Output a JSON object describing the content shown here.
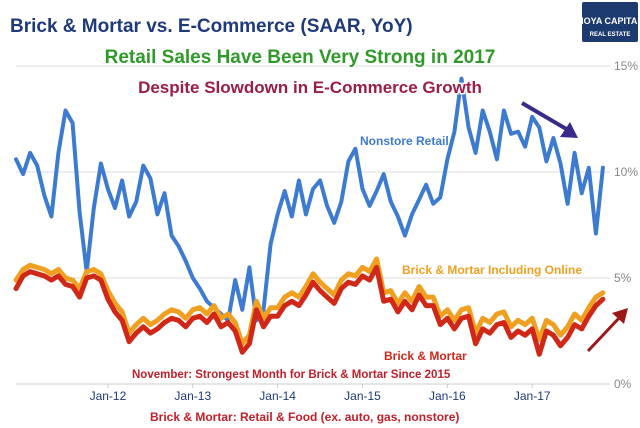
{
  "chart_data": {
    "type": "line",
    "title": "Brick & Mortar vs. E-Commerce (SAAR, YoY)",
    "headline": "Retail Sales Have Been Very Strong in 2017",
    "subheadline": "Despite Slowdown in E-Commerce Growth",
    "logo": {
      "line1": "HOYA CAPITAL",
      "line2": "REAL ESTATE"
    },
    "x_tick_labels": [
      {
        "label": "Jan-12",
        "x": 13
      },
      {
        "label": "Jan-13",
        "x": 25
      },
      {
        "label": "Jan-14",
        "x": 37
      },
      {
        "label": "Jan-15",
        "x": 49
      },
      {
        "label": "Jan-16",
        "x": 61
      },
      {
        "label": "Jan-17",
        "x": 73
      }
    ],
    "ylim": [
      0,
      15
    ],
    "xlim": [
      0,
      84
    ],
    "y_ticks": [
      0,
      5,
      10,
      15
    ],
    "y_tick_labels": [
      "0%",
      "5%",
      "10%",
      "15%"
    ],
    "grid": "horizontal",
    "series": [
      {
        "name": "Nonstore Retail",
        "color": "#3d7bd0",
        "values": [
          10.6,
          9.9,
          10.9,
          10.3,
          8.9,
          7.9,
          10.9,
          12.9,
          12.3,
          8.1,
          5.3,
          8.3,
          10.4,
          9.2,
          8.3,
          9.6,
          7.9,
          8.6,
          10.3,
          9.7,
          8.0,
          9.0,
          7.0,
          6.5,
          5.8,
          5.0,
          4.5,
          3.9,
          3.6,
          3.3,
          3.0,
          4.9,
          3.5,
          5.5,
          3.0,
          3.5,
          6.6,
          8.0,
          9.1,
          7.9,
          9.6,
          8.0,
          9.2,
          9.6,
          8.4,
          7.6,
          8.6,
          10.5,
          11.1,
          9.2,
          8.4,
          9.1,
          9.9,
          8.6,
          7.9,
          7.0,
          8.0,
          8.7,
          9.4,
          8.5,
          8.8,
          10.6,
          11.9,
          14.4,
          12.1,
          10.9,
          12.9,
          11.9,
          10.6,
          12.9,
          11.8,
          11.9,
          11.2,
          12.6,
          12.1,
          10.5,
          11.6,
          10.4,
          8.5,
          10.9,
          9.0,
          10.2,
          7.1,
          10.2
        ],
        "label": "Nonstore Retail"
      },
      {
        "name": "Brick & Mortar Including Online",
        "color": "#f0a020",
        "values": [
          4.9,
          5.4,
          5.6,
          5.5,
          5.4,
          5.2,
          5.4,
          5.0,
          4.9,
          4.5,
          5.3,
          5.4,
          5.2,
          4.4,
          3.8,
          3.4,
          2.4,
          2.8,
          3.1,
          2.8,
          3.0,
          3.3,
          3.5,
          3.4,
          3.1,
          3.5,
          3.6,
          3.3,
          3.7,
          3.1,
          3.3,
          2.9,
          1.9,
          2.3,
          3.9,
          3.1,
          3.6,
          3.6,
          4.1,
          4.3,
          4.1,
          4.6,
          5.2,
          4.8,
          4.5,
          4.2,
          4.9,
          5.2,
          5.1,
          5.5,
          5.3,
          5.9,
          4.3,
          4.4,
          3.8,
          4.3,
          3.9,
          4.6,
          4.1,
          4.1,
          3.2,
          3.5,
          3.0,
          3.5,
          3.6,
          2.4,
          3.1,
          2.9,
          3.3,
          3.4,
          2.7,
          3.0,
          2.8,
          3.1,
          2.1,
          3.0,
          2.8,
          2.3,
          2.7,
          3.3,
          3.0,
          3.6,
          4.1,
          4.3
        ],
        "label": "Brick & Mortar Including Online"
      },
      {
        "name": "Brick & Mortar",
        "color": "#d02818",
        "values": [
          4.5,
          5.1,
          5.3,
          5.2,
          5.1,
          4.9,
          5.1,
          4.7,
          4.6,
          4.1,
          5.0,
          5.1,
          4.9,
          4.0,
          3.4,
          3.0,
          2.0,
          2.4,
          2.7,
          2.4,
          2.6,
          2.9,
          3.1,
          3.0,
          2.7,
          3.1,
          3.2,
          2.9,
          3.3,
          2.7,
          2.9,
          2.5,
          1.5,
          1.9,
          3.5,
          2.7,
          3.2,
          3.2,
          3.7,
          3.9,
          3.7,
          4.2,
          4.8,
          4.4,
          4.1,
          3.8,
          4.5,
          4.8,
          4.7,
          5.1,
          4.9,
          5.5,
          3.9,
          4.0,
          3.4,
          3.9,
          3.5,
          4.2,
          3.7,
          3.7,
          2.8,
          3.1,
          2.6,
          3.1,
          3.2,
          1.9,
          2.6,
          2.4,
          2.8,
          2.9,
          2.2,
          2.5,
          2.3,
          2.6,
          1.4,
          2.5,
          2.3,
          1.8,
          2.2,
          2.8,
          2.6,
          3.2,
          3.7,
          4.0
        ],
        "label": "Brick & Mortar"
      }
    ],
    "annotation": "November: Strongest Month for Brick & Mortar Since 2015",
    "footnote": "Brick & Mortar: Retail & Food (ex. auto, gas, nonstore)",
    "arrow_colors": {
      "down": "#3a2a8a",
      "up": "#9a1818"
    }
  }
}
